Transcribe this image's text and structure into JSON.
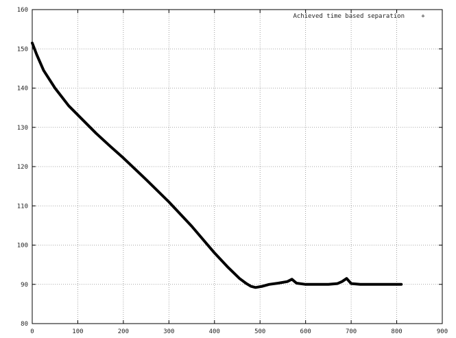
{
  "chart_data": {
    "type": "line",
    "title": "",
    "xlabel": "",
    "ylabel": "",
    "xlim": [
      0,
      900
    ],
    "ylim": [
      80,
      160
    ],
    "x_ticks": [
      0,
      100,
      200,
      300,
      400,
      500,
      600,
      700,
      800,
      900
    ],
    "y_ticks": [
      80,
      90,
      100,
      110,
      120,
      130,
      140,
      150,
      160
    ],
    "x_tick_labels": [
      "0",
      "100",
      "200",
      "300",
      "400",
      "500",
      "600",
      "700",
      "800",
      "900"
    ],
    "y_tick_labels": [
      "80",
      "90",
      "100",
      "110",
      "120",
      "130",
      "140",
      "150",
      "160"
    ],
    "grid": true,
    "legend_position": "top-right",
    "series": [
      {
        "name": "Achieved time based separation",
        "legend_marker": "+",
        "color": "#000000",
        "x": [
          0,
          10,
          25,
          50,
          80,
          110,
          140,
          170,
          200,
          250,
          300,
          350,
          400,
          430,
          455,
          470,
          480,
          490,
          505,
          520,
          540,
          560,
          570,
          580,
          600,
          650,
          670,
          680,
          690,
          700,
          720,
          760,
          810
        ],
        "y": [
          151.5,
          148.5,
          144.5,
          140,
          135.5,
          132,
          128.5,
          125.3,
          122.2,
          116.7,
          111,
          104.8,
          98,
          94.3,
          91.5,
          90.2,
          89.5,
          89.2,
          89.5,
          90,
          90.3,
          90.7,
          91.3,
          90.3,
          90,
          90,
          90.2,
          90.7,
          91.5,
          90.2,
          90,
          90,
          90
        ]
      }
    ]
  }
}
